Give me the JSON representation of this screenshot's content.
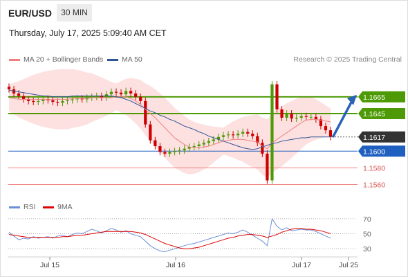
{
  "header": {
    "symbol": "EUR/USD",
    "interval": "30 MIN",
    "datetime": "Thursday, July 17, 2025 5:09:40 AM CET",
    "credit": "Research © 2025 Trading Central"
  },
  "legend": {
    "ma20": "MA 20 + Bollinger Bands",
    "ma50": "MA 50",
    "rsi": "RSI",
    "rsi_ma": "9MA"
  },
  "colors": {
    "ma20": "#f08080",
    "ma50": "#2f5597",
    "band_fill": "#fde0e0",
    "resistance": "#4e9a06",
    "pivot": "#1f5fbf",
    "support": "#f08080",
    "last_price": "#333333",
    "rsi": "#6b8fd6",
    "rsi_ma": "#e00000",
    "up_candle": "#4e9a06",
    "down_candle": "#cc0000"
  },
  "chart_data": [
    {
      "type": "candlestick",
      "ylim": [
        1.1553,
        1.1698
      ],
      "x_ticks": [
        "Jul 15",
        "Jul 16",
        "Jul 17",
        "Jul 25"
      ],
      "levels": [
        {
          "label": "1.1665",
          "value": 1.1665,
          "role": "resistance"
        },
        {
          "label": "1.1645",
          "value": 1.1645,
          "role": "resistance"
        },
        {
          "label": "1.1617",
          "value": 1.1617,
          "role": "last_price"
        },
        {
          "label": "1.1600",
          "value": 1.16,
          "role": "pivot"
        },
        {
          "label": "1.1580",
          "value": 1.158,
          "role": "support"
        },
        {
          "label": "1.1560",
          "value": 1.156,
          "role": "support"
        }
      ],
      "close": [
        1.1674,
        1.1669,
        1.1666,
        1.1662,
        1.166,
        1.1659,
        1.166,
        1.1662,
        1.1661,
        1.1659,
        1.1658,
        1.166,
        1.1661,
        1.1662,
        1.1663,
        1.1662,
        1.1664,
        1.1665,
        1.1666,
        1.1664,
        1.1668,
        1.1671,
        1.167,
        1.1668,
        1.1672,
        1.1669,
        1.1665,
        1.166,
        1.1632,
        1.1613,
        1.1606,
        1.1599,
        1.1597,
        1.1599,
        1.16,
        1.1601,
        1.1603,
        1.1605,
        1.1606,
        1.1608,
        1.161,
        1.1612,
        1.1614,
        1.1617,
        1.1619,
        1.162,
        1.1619,
        1.1621,
        1.1623,
        1.1621,
        1.1618,
        1.161,
        1.1597,
        1.1565,
        1.168,
        1.165,
        1.164,
        1.1645,
        1.1639,
        1.164,
        1.1642,
        1.1641,
        1.1641,
        1.1638,
        1.163,
        1.1625,
        1.1617
      ],
      "ma20": [
        1.1664,
        1.1663,
        1.1662,
        1.1662,
        1.1662,
        1.1662,
        1.1662,
        1.1662,
        1.1662,
        1.1662,
        1.1662,
        1.1662,
        1.1662,
        1.1663,
        1.1663,
        1.1663,
        1.1663,
        1.1664,
        1.1664,
        1.1664,
        1.1664,
        1.1664,
        1.1665,
        1.1665,
        1.1665,
        1.1663,
        1.166,
        1.1656,
        1.165,
        1.1645,
        1.164,
        1.1634,
        1.1628,
        1.1622,
        1.1616,
        1.1612,
        1.1608,
        1.1605,
        1.1604,
        1.1604,
        1.1605,
        1.1606,
        1.1608,
        1.161,
        1.1612,
        1.1613,
        1.1614,
        1.1614,
        1.1614,
        1.1613,
        1.1612,
        1.1611,
        1.1606,
        1.1603,
        1.161,
        1.1614,
        1.1618,
        1.1622,
        1.1626,
        1.163,
        1.1634,
        1.1637,
        1.1638,
        1.1638,
        1.1637,
        1.1636,
        1.1635
      ],
      "ma50": [
        1.1673,
        1.1672,
        1.1671,
        1.167,
        1.1669,
        1.1668,
        1.1667,
        1.1666,
        1.1666,
        1.1665,
        1.1665,
        1.1665,
        1.1665,
        1.1666,
        1.1666,
        1.1666,
        1.1666,
        1.1666,
        1.1666,
        1.1666,
        1.1666,
        1.1666,
        1.1665,
        1.1664,
        1.1662,
        1.166,
        1.1657,
        1.1654,
        1.1651,
        1.1648,
        1.1646,
        1.1643,
        1.1641,
        1.1638,
        1.1636,
        1.1633,
        1.163,
        1.1628,
        1.1626,
        1.1623,
        1.1621,
        1.1618,
        1.1616,
        1.1614,
        1.1612,
        1.161,
        1.1608,
        1.1606,
        1.1604,
        1.1603,
        1.1602,
        1.1603,
        1.1605,
        1.1607,
        1.1609,
        1.161,
        1.1612,
        1.1613,
        1.1614,
        1.1615,
        1.1616,
        1.1616,
        1.1617,
        1.1617,
        1.1617,
        1.1617,
        1.1617
      ]
    },
    {
      "type": "line",
      "ylim": [
        20,
        80
      ],
      "y_ticks": [
        "70",
        "50",
        "30"
      ],
      "series": [
        {
          "name": "RSI",
          "values": [
            52,
            47,
            42,
            44,
            43,
            46,
            44,
            45,
            46,
            44,
            47,
            48,
            46,
            49,
            51,
            50,
            53,
            56,
            54,
            51,
            54,
            57,
            55,
            52,
            54,
            50,
            48,
            46,
            40,
            34,
            30,
            27,
            26,
            28,
            30,
            32,
            34,
            36,
            37,
            39,
            41,
            43,
            45,
            47,
            49,
            51,
            50,
            52,
            55,
            52,
            48,
            44,
            40,
            34,
            70,
            60,
            55,
            58,
            54,
            55,
            56,
            55,
            55,
            53,
            50,
            47,
            44
          ]
        },
        {
          "name": "9MA",
          "values": [
            49,
            48,
            47,
            46,
            45,
            45,
            45,
            45,
            45,
            45,
            45,
            46,
            46,
            47,
            48,
            48,
            49,
            50,
            51,
            52,
            53,
            53,
            53,
            53,
            53,
            53,
            52,
            51,
            49,
            46,
            43,
            40,
            37,
            35,
            33,
            31,
            30,
            30,
            31,
            32,
            34,
            36,
            38,
            40,
            42,
            44,
            45,
            47,
            48,
            49,
            49,
            48,
            47,
            45,
            47,
            49,
            52,
            54,
            56,
            57,
            57,
            56,
            56,
            55,
            54,
            52,
            50
          ]
        }
      ]
    }
  ]
}
